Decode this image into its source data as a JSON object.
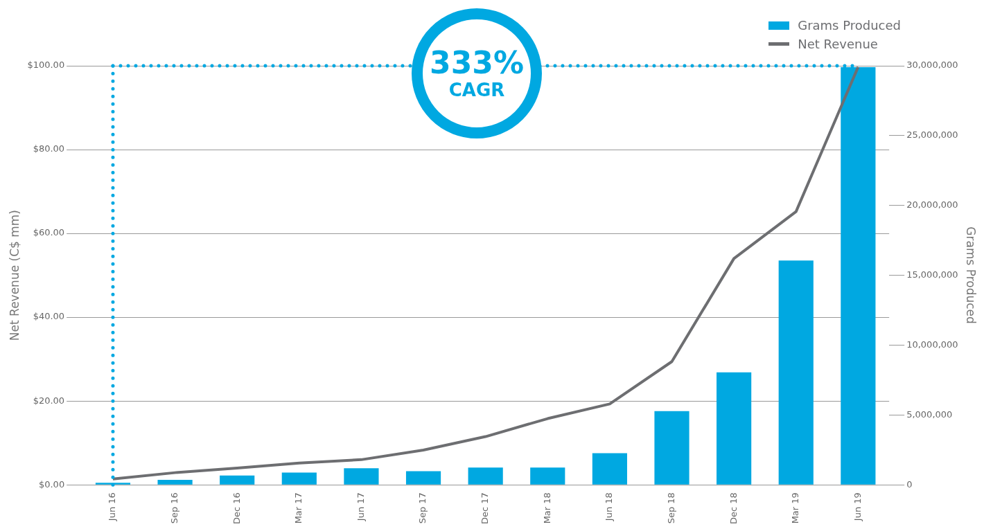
{
  "chart_data": {
    "type": "bar",
    "categories": [
      "Jun 16",
      "Sep 16",
      "Dec 16",
      "Mar 17",
      "Jun 17",
      "Sep 17",
      "Dec 17",
      "Mar 18",
      "Jun 18",
      "Sep 18",
      "Dec 18",
      "Mar 19",
      "Jun 19"
    ],
    "series": [
      {
        "name": "Grams Produced",
        "axis": "y2",
        "color": "#00a8e1",
        "values": [
          150000,
          360000,
          670000,
          880000,
          1190000,
          980000,
          1240000,
          1240000,
          2270000,
          5270000,
          8050000,
          16060000,
          29900000
        ]
      },
      {
        "name": "Net Revenue",
        "type": "line",
        "color": "#6d6e71",
        "values": [
          1.4,
          2.9,
          4.0,
          5.2,
          6.0,
          8.3,
          11.5,
          15.8,
          19.3,
          29.4,
          54.0,
          65.2,
          99.7
        ]
      }
    ],
    "ylabel": "Net Revenue (C$ mm)",
    "y2label": "Grams Produced",
    "ylim": [
      0,
      100
    ],
    "yticks": [
      {
        "value": 0,
        "label": "$0.00"
      },
      {
        "value": 20,
        "label": "$20.00"
      },
      {
        "value": 40,
        "label": "$40.00"
      },
      {
        "value": 60,
        "label": "$60.00"
      },
      {
        "value": 80,
        "label": "$80.00"
      },
      {
        "value": 100,
        "label": "$100.00"
      }
    ],
    "y2lim": [
      0,
      30000000
    ],
    "y2ticks": [
      0,
      {
        "value": 5000000,
        "label": "5,000,000"
      },
      {
        "value": 10000000,
        "label": "10,000,000"
      },
      {
        "value": 15000000,
        "label": "15,000,000"
      },
      {
        "value": 20000000,
        "label": "20,000,000"
      },
      {
        "value": 25000000,
        "label": "25,000,000"
      },
      {
        "value": 30000000,
        "label": "30,000,000"
      }
    ],
    "grid": "y",
    "legend": "top right",
    "marker": "none",
    "annotations": [
      "333%",
      "CAGR"
    ],
    "ref_lines": [
      {
        "axis": "y",
        "value": 100,
        "color": "#00a8e1",
        "line_style": "dotted"
      },
      {
        "axis": "x",
        "value": "Jun 16",
        "color": "#00a8e1",
        "line_style": "dotted"
      }
    ]
  }
}
